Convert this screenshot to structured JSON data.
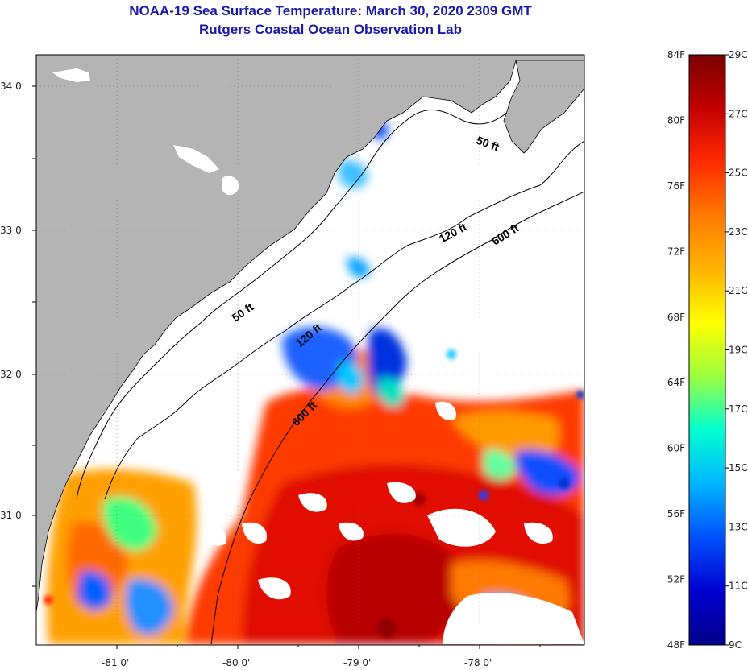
{
  "header": {
    "title": "NOAA-19 Sea Surface Temperature:  March 30, 2020 2309 GMT",
    "subtitle": "Rutgers Coastal Ocean Observation Lab"
  },
  "map": {
    "lon_labels": [
      "-81 0'",
      "-80 0'",
      "-79 0'",
      "-78 0'"
    ],
    "lat_labels": [
      "34 0'",
      "33 0'",
      "32 0'",
      "31 0'"
    ],
    "contours": [
      {
        "label": "50 ft"
      },
      {
        "label": "50 ft"
      },
      {
        "label": "120 ft"
      },
      {
        "label": "120 ft"
      },
      {
        "label": "600 ft"
      },
      {
        "label": "600 ft"
      }
    ],
    "colors": {
      "land": "#b4b4b4",
      "cloud": "#ffffff",
      "coast": "#000000"
    }
  },
  "colorbar": {
    "fahrenheit": [
      "84F",
      "80F",
      "76F",
      "72F",
      "68F",
      "64F",
      "60F",
      "56F",
      "52F",
      "48F"
    ],
    "celsius": [
      "29C",
      "27C",
      "25C",
      "23C",
      "21C",
      "19C",
      "17C",
      "15C",
      "13C",
      "11C",
      "9C"
    ],
    "gradient": [
      "#7a0000",
      "#c40000",
      "#ff2a00",
      "#ff7a00",
      "#ffb400",
      "#ffff00",
      "#9cff40",
      "#00ffd0",
      "#00b4ff",
      "#0050ff",
      "#0000d0",
      "#00008a"
    ]
  }
}
